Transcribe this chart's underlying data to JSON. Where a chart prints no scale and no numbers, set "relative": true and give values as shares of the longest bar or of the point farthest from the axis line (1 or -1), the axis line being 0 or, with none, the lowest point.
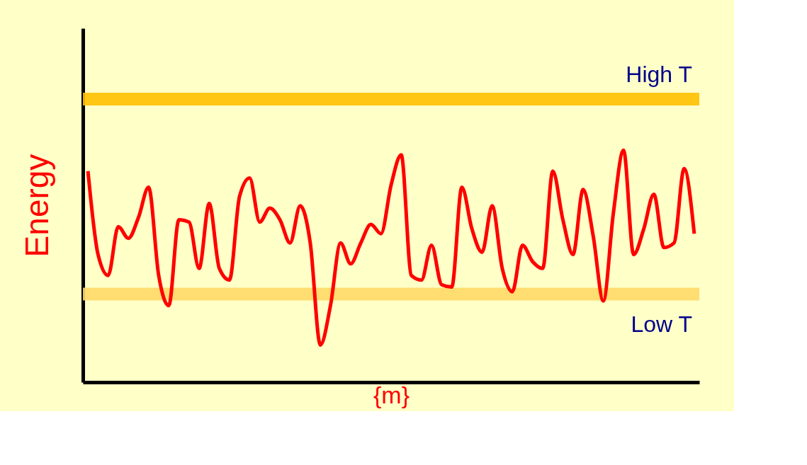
{
  "chart_data": {
    "type": "line",
    "relative": true,
    "xlabel": "{m}",
    "ylabel": "Energy",
    "tick_labels": false,
    "grid": false,
    "marker": "none",
    "line_style": "solid",
    "categories": [
      null,
      null,
      null,
      null,
      null,
      null,
      null,
      null,
      null,
      null,
      null,
      null,
      null,
      null,
      null,
      null,
      null,
      null,
      null,
      null,
      null,
      null,
      null,
      null,
      null,
      null,
      null,
      null,
      null,
      null,
      null,
      null,
      null,
      null,
      null,
      null,
      null,
      null,
      null,
      null,
      null,
      null,
      null,
      null,
      null,
      null,
      null,
      null,
      null,
      null,
      null,
      null,
      null,
      null,
      null,
      null,
      null,
      null,
      null,
      null,
      null
    ],
    "series": [
      {
        "color": "#ff0000",
        "values": [
          0.91,
          0.55,
          0.46,
          0.67,
          0.62,
          0.71,
          0.84,
          0.46,
          0.33,
          0.7,
          0.69,
          0.49,
          0.77,
          0.49,
          0.44,
          0.8,
          0.88,
          0.69,
          0.75,
          0.7,
          0.6,
          0.76,
          0.6,
          0.16,
          0.33,
          0.6,
          0.51,
          0.6,
          0.68,
          0.64,
          0.85,
          0.98,
          0.46,
          0.44,
          0.59,
          0.42,
          0.41,
          0.84,
          0.66,
          0.56,
          0.76,
          0.49,
          0.39,
          0.59,
          0.52,
          0.49,
          0.91,
          0.7,
          0.55,
          0.83,
          0.63,
          0.35,
          0.73,
          1.0,
          0.55,
          0.66,
          0.81,
          0.58,
          0.6,
          0.92,
          0.64
        ]
      }
    ],
    "ref_lines": [
      {
        "axis": "y",
        "value": 1.22,
        "label": "High T",
        "color": "#ffc000"
      },
      {
        "axis": "y",
        "value": 0.38,
        "label": "Low T",
        "color": "#ffd966"
      }
    ]
  }
}
